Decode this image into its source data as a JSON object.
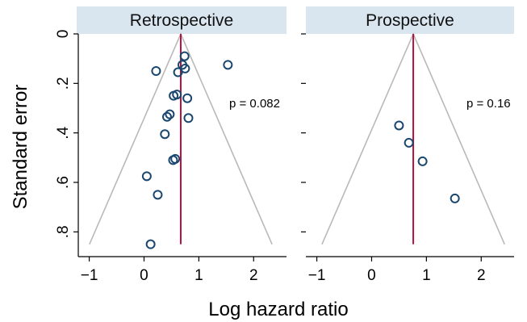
{
  "chart_data": [
    {
      "type": "scatter",
      "panel": "Retrospective",
      "x_label": "Log hazard ratio",
      "y_label": "Standard error",
      "x_ticks": [
        "−1",
        "0",
        "1",
        "2"
      ],
      "y_ticks": [
        "0",
        ".2",
        ".4",
        ".6",
        ".8"
      ],
      "xlim": [
        -1.2,
        2.6
      ],
      "ylim": [
        0,
        0.9
      ],
      "y_reversed": true,
      "pooled_estimate": 0.67,
      "p_value_label": "p = 0.082",
      "points": [
        {
          "x": 0.74,
          "y": 0.09
        },
        {
          "x": 1.53,
          "y": 0.125
        },
        {
          "x": 0.7,
          "y": 0.125
        },
        {
          "x": 0.75,
          "y": 0.14
        },
        {
          "x": 0.22,
          "y": 0.15
        },
        {
          "x": 0.62,
          "y": 0.155
        },
        {
          "x": 0.6,
          "y": 0.245
        },
        {
          "x": 0.54,
          "y": 0.25
        },
        {
          "x": 0.79,
          "y": 0.26
        },
        {
          "x": 0.47,
          "y": 0.325
        },
        {
          "x": 0.42,
          "y": 0.335
        },
        {
          "x": 0.81,
          "y": 0.34
        },
        {
          "x": 0.38,
          "y": 0.405
        },
        {
          "x": 0.57,
          "y": 0.505
        },
        {
          "x": 0.53,
          "y": 0.51
        },
        {
          "x": 0.05,
          "y": 0.575
        },
        {
          "x": 0.25,
          "y": 0.65
        },
        {
          "x": 0.12,
          "y": 0.85
        }
      ]
    },
    {
      "type": "scatter",
      "panel": "Prospective",
      "x_label": "Log hazard ratio",
      "y_label": "Standard error",
      "x_ticks": [
        "−1",
        "0",
        "1",
        "2"
      ],
      "y_ticks": [
        "0",
        ".2",
        ".4",
        ".6",
        ".8"
      ],
      "xlim": [
        -1.2,
        2.6
      ],
      "ylim": [
        0,
        0.9
      ],
      "y_reversed": true,
      "pooled_estimate": 0.76,
      "p_value_label": "p = 0.16",
      "points": [
        {
          "x": 0.5,
          "y": 0.37
        },
        {
          "x": 0.68,
          "y": 0.44
        },
        {
          "x": 0.93,
          "y": 0.515
        },
        {
          "x": 1.52,
          "y": 0.665
        }
      ]
    }
  ],
  "colors": {
    "strip": "#d9e6ef",
    "marker": "#1a476f",
    "pooled_line": "#b3123f",
    "funnel": "#b9b9b9"
  }
}
